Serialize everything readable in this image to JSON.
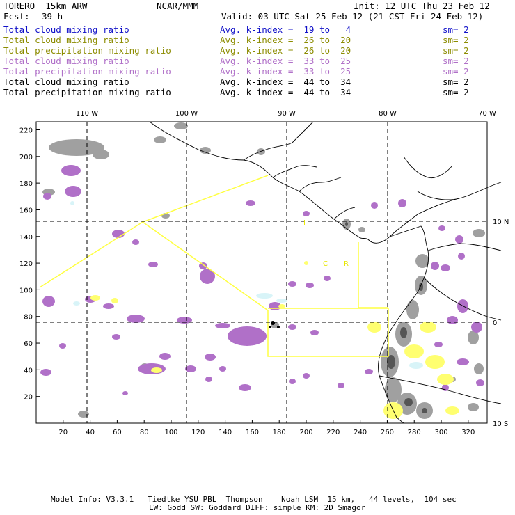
{
  "header": {
    "model": "TORERO  15km ARW",
    "org": "NCAR/MMM",
    "init": "Init: 12 UTC Thu 23 Feb 12",
    "fcst_label": "Fcst:",
    "fcst_value": "39 h",
    "valid": "Valid: 03 UTC Sat 25 Feb 12 (21 CST Fri 24 Feb 12)"
  },
  "legend": [
    {
      "field": "Total cloud mixing ratio",
      "kindex": "Avg. k-index =  19 to   4",
      "sm": "sm= 2",
      "color": "#1010c8"
    },
    {
      "field": "Total cloud mixing ratio",
      "kindex": "Avg. k-index =  26 to  20",
      "sm": "sm= 2",
      "color": "#8c8c00"
    },
    {
      "field": "Total precipitation mixing ratio",
      "kindex": "Avg. k-index =  26 to  20",
      "sm": "sm= 2",
      "color": "#8c8c00"
    },
    {
      "field": "Total cloud mixing ratio",
      "kindex": "Avg. k-index =  33 to  25",
      "sm": "sm= 2",
      "color": "#b070c8"
    },
    {
      "field": "Total precipitation mixing ratio",
      "kindex": "Avg. k-index =  33 to  25",
      "sm": "sm= 2",
      "color": "#b070c8"
    },
    {
      "field": "Total cloud mixing ratio",
      "kindex": "Avg. k-index =  44 to  34",
      "sm": "sm= 2",
      "color": "#000000"
    },
    {
      "field": "Total precipitation mixing ratio",
      "kindex": "Avg. k-index =  44 to  34",
      "sm": "sm= 2",
      "color": "#000000"
    }
  ],
  "map": {
    "lon_labels": [
      "110 W",
      "100 W",
      "90 W",
      "80 W",
      "70 W"
    ],
    "lat_labels": [
      "10 N",
      "0",
      "10 S"
    ],
    "x_ticks": [
      "20",
      "40",
      "60",
      "80",
      "100",
      "120",
      "140",
      "160",
      "180",
      "200",
      "220",
      "240",
      "260",
      "280",
      "300",
      "320"
    ],
    "y_ticks": [
      "220",
      "200",
      "180",
      "160",
      "140",
      "120",
      "100",
      "80",
      "60",
      "40",
      "20"
    ],
    "annotations": [
      "I",
      "C",
      "R"
    ],
    "colors": {
      "gray": "#a0a0a0",
      "purple": "#b070c8",
      "yellow": "#ffff70",
      "cyan": "#d8f4f8",
      "border": "#ffff40"
    }
  },
  "footer": {
    "line1": "Model Info: V3.3.1   Tiedtke YSU PBL  Thompson    Noah LSM  15 km,   44 levels,  104 sec",
    "line2": "LW: Godd SW: Goddard DIFF: simple KM: 2D Smagor"
  }
}
